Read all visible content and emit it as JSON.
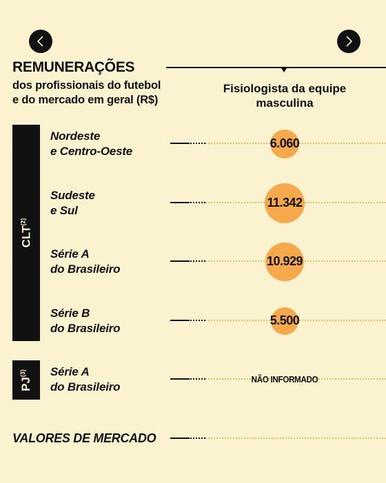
{
  "nav": {
    "prev_icon": "chevron-left-icon",
    "next_icon": "chevron-right-icon"
  },
  "header": {
    "title": "REMUNERAÇÕES",
    "subtitle_line1": "dos profissionais do futebol",
    "subtitle_line2": "e do mercado em geral (R$)",
    "column_line1": "Fisiologista da equipe",
    "column_line2": "masculina"
  },
  "groups": {
    "clt": {
      "label": "CLT",
      "note": "(2)"
    },
    "pj": {
      "label": "PJ",
      "note": "(3)"
    }
  },
  "market_label": "VALORES DE MERCADO",
  "colors": {
    "background": "#fbf2d0",
    "bubble": "#f6a94c",
    "ink": "#111111"
  },
  "chart_data": {
    "type": "bubble",
    "column": "Fisiologista da equipe masculina",
    "rows": [
      {
        "group": "CLT",
        "line1": "Nordeste",
        "line2": "e Centro-Oeste",
        "value": 6060,
        "value_label": "6.060"
      },
      {
        "group": "CLT",
        "line1": "Sudeste",
        "line2": "e Sul",
        "value": 11342,
        "value_label": "11.342"
      },
      {
        "group": "CLT",
        "line1": "Série A",
        "line2": "do Brasileiro",
        "value": 10929,
        "value_label": "10.929"
      },
      {
        "group": "CLT",
        "line1": "Série B",
        "line2": "do Brasileiro",
        "value": 5500,
        "value_label": "5.500"
      },
      {
        "group": "PJ",
        "line1": "Série A",
        "line2": "do Brasileiro",
        "value": null,
        "value_label": "NÃO INFORMADO"
      },
      {
        "group": "market",
        "line1": "VALORES DE MERCADO",
        "line2": "",
        "value": null,
        "value_label": ""
      }
    ]
  }
}
